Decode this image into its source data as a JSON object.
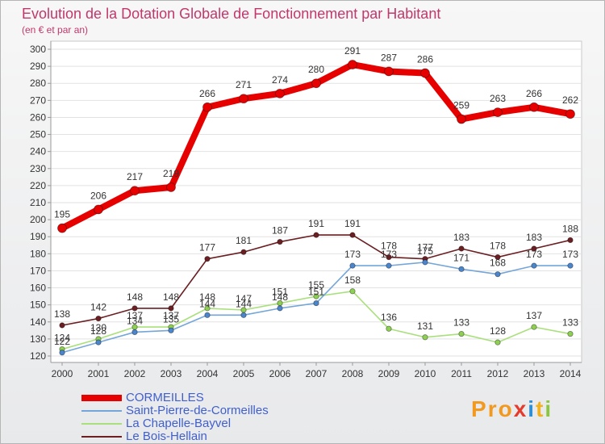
{
  "logo": {
    "text": "Proxiti",
    "colors": [
      "#f29a1f",
      "#f29a1f",
      "#f29a1f",
      "#e53b2c",
      "#2f8fd6",
      "#f2b21f",
      "#8cc63f"
    ]
  },
  "chart_data": {
    "type": "line",
    "title": "Evolution de la Dotation Globale de Fonctionnement par Habitant",
    "subtitle": "(en € et par an)",
    "x": [
      "2000",
      "2001",
      "2002",
      "2003",
      "2004",
      "2005",
      "2006",
      "2007",
      "2008",
      "2009",
      "2010",
      "2011",
      "2012",
      "2013",
      "2014"
    ],
    "ylim": [
      120,
      300
    ],
    "ystep": 10,
    "grid": true,
    "legend": "bottom-left",
    "series": [
      {
        "name": "CORMEILLES",
        "color": "#e60000",
        "marker_color": "#e60000",
        "values": [
          195,
          206,
          217,
          219,
          266,
          271,
          274,
          280,
          291,
          287,
          286,
          259,
          263,
          266,
          262
        ]
      },
      {
        "name": "Saint-Pierre-de-Cormeilles",
        "color": "#74a6da",
        "marker_color": "#4b86cc",
        "values": [
          122,
          128,
          134,
          135,
          144,
          144,
          148,
          151,
          173,
          173,
          175,
          171,
          168,
          173,
          173
        ]
      },
      {
        "name": "La Chapelle-Bayvel",
        "color": "#a9e07c",
        "marker_color": "#8fd052",
        "values": [
          124,
          130,
          137,
          137,
          148,
          147,
          151,
          155,
          158,
          136,
          131,
          133,
          128,
          137,
          133
        ]
      },
      {
        "name": "Le Bois-Hellain",
        "color": "#6b1f22",
        "marker_color": "#6b1f22",
        "values": [
          138,
          142,
          148,
          148,
          177,
          181,
          187,
          191,
          191,
          178,
          177,
          183,
          178,
          183,
          188
        ]
      }
    ]
  }
}
